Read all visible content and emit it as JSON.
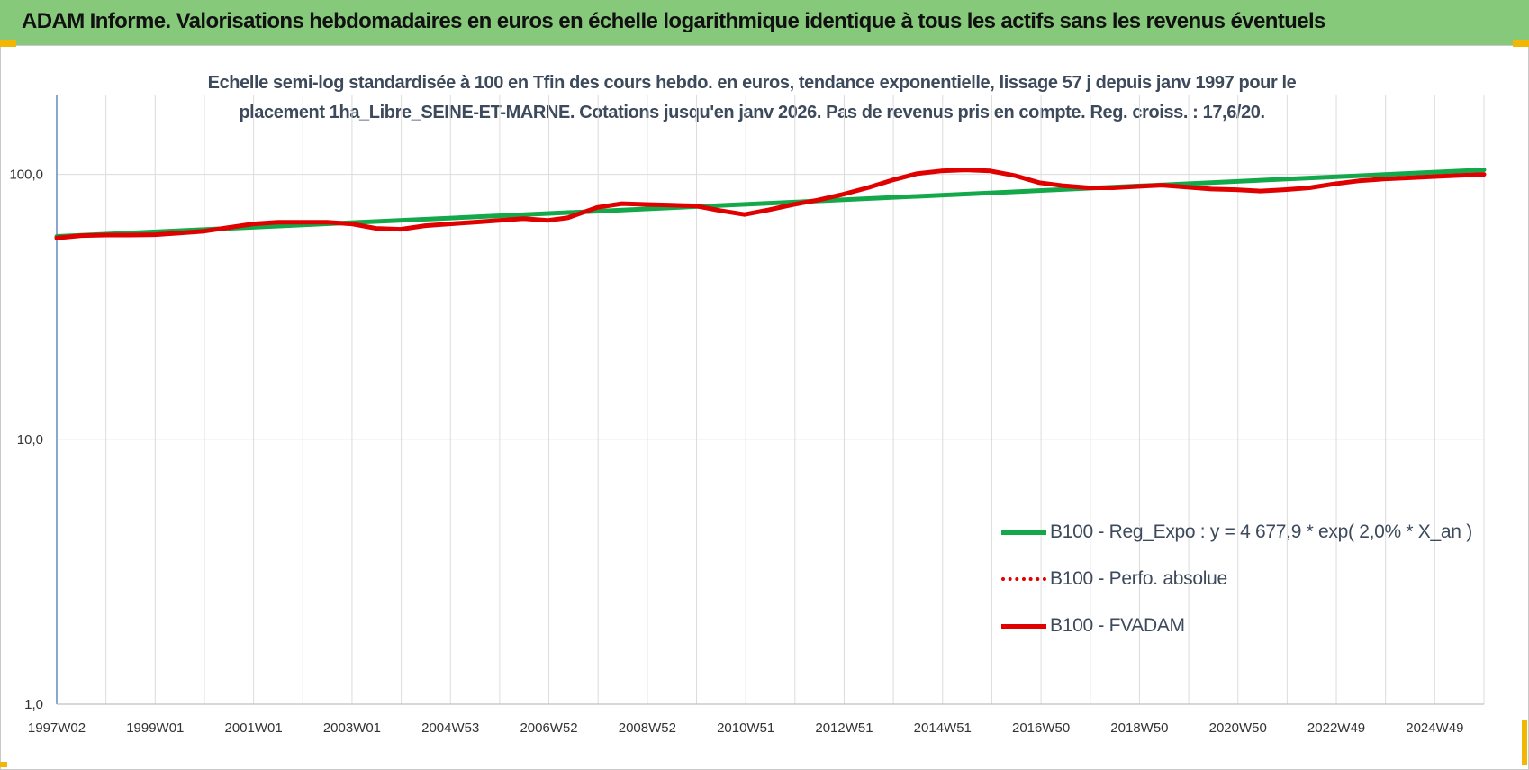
{
  "header": {
    "title": "ADAM Informe. Valorisations hebdomadaires en euros en échelle logarithmique identique à tous les actifs sans les revenus éventuels"
  },
  "chart_data": {
    "type": "line",
    "title_lines": [
      "Echelle semi-log standardisée à 100 en Tfin des cours hebdo. en euros, tendance exponentielle, lissage 57 j depuis janv 1997 pour le",
      "placement 1ha_Libre_SEINE-ET-MARNE.  Cotations jusqu'en janv 2026.  Pas de revenus pris en compte. Reg. croiss. : 17,6/20."
    ],
    "x_scale": "weekly, 1997W02 to 2026W02",
    "y_scale": "log",
    "ylim": [
      1,
      200
    ],
    "y_ticks": [
      1,
      10,
      100
    ],
    "y_tick_labels": [
      "1,0",
      "10,0",
      "100,0"
    ],
    "x_range": [
      1997.0,
      2026.05
    ],
    "x_tick_labels": [
      "1997W02",
      "1999W01",
      "2001W01",
      "2003W01",
      "2004W53",
      "2006W52",
      "2008W52",
      "2010W51",
      "2012W51",
      "2014W51",
      "2016W50",
      "2018W50",
      "2020W50",
      "2022W49",
      "2024W49"
    ],
    "grid": true,
    "legend_position": "lower-right",
    "series": [
      {
        "name": "B100 - Reg_Expo : y = 4 677,9 * exp( 2,0% *  X_an )",
        "color": "#13a84a",
        "style": "solid",
        "points": [
          [
            1997.0,
            58.3
          ],
          [
            2026.05,
            104.0
          ]
        ]
      },
      {
        "name": "B100 - Perfo. absolue",
        "color": "#e00000",
        "style": "dotted",
        "points": []
      },
      {
        "name": "B100 - FVADAM",
        "color": "#e00000",
        "style": "solid",
        "points": [
          [
            1997.0,
            57.5
          ],
          [
            1997.5,
            58.7
          ],
          [
            1998.0,
            59.0
          ],
          [
            1998.5,
            59.0
          ],
          [
            1999.0,
            59.2
          ],
          [
            1999.5,
            60.0
          ],
          [
            2000.0,
            61.0
          ],
          [
            2000.5,
            63.0
          ],
          [
            2001.0,
            65.0
          ],
          [
            2001.5,
            66.0
          ],
          [
            2002.0,
            66.0
          ],
          [
            2002.5,
            66.0
          ],
          [
            2003.0,
            65.0
          ],
          [
            2003.5,
            62.5
          ],
          [
            2004.0,
            62.0
          ],
          [
            2004.5,
            64.0
          ],
          [
            2005.0,
            65.0
          ],
          [
            2005.5,
            66.0
          ],
          [
            2006.0,
            67.0
          ],
          [
            2006.5,
            68.0
          ],
          [
            2007.0,
            67.0
          ],
          [
            2007.4,
            68.5
          ],
          [
            2008.0,
            75.0
          ],
          [
            2008.5,
            77.5
          ],
          [
            2009.0,
            77.0
          ],
          [
            2009.5,
            76.5
          ],
          [
            2010.0,
            76.0
          ],
          [
            2010.5,
            73.0
          ],
          [
            2011.0,
            70.5
          ],
          [
            2011.5,
            73.5
          ],
          [
            2012.0,
            77.0
          ],
          [
            2012.5,
            80.0
          ],
          [
            2013.0,
            84.0
          ],
          [
            2013.5,
            89.0
          ],
          [
            2014.0,
            95.0
          ],
          [
            2014.5,
            100.5
          ],
          [
            2015.0,
            103.0
          ],
          [
            2015.5,
            104.0
          ],
          [
            2016.0,
            103.0
          ],
          [
            2016.5,
            99.0
          ],
          [
            2017.0,
            93.0
          ],
          [
            2017.5,
            90.5
          ],
          [
            2018.0,
            89.0
          ],
          [
            2018.5,
            89.0
          ],
          [
            2019.0,
            90.0
          ],
          [
            2019.5,
            91.0
          ],
          [
            2020.0,
            89.5
          ],
          [
            2020.5,
            88.0
          ],
          [
            2021.0,
            87.5
          ],
          [
            2021.5,
            86.5
          ],
          [
            2022.0,
            87.5
          ],
          [
            2022.5,
            89.0
          ],
          [
            2023.0,
            92.0
          ],
          [
            2023.5,
            94.5
          ],
          [
            2024.0,
            96.0
          ],
          [
            2024.5,
            97.0
          ],
          [
            2025.0,
            98.0
          ],
          [
            2025.5,
            99.0
          ],
          [
            2026.05,
            100.0
          ]
        ]
      }
    ]
  }
}
